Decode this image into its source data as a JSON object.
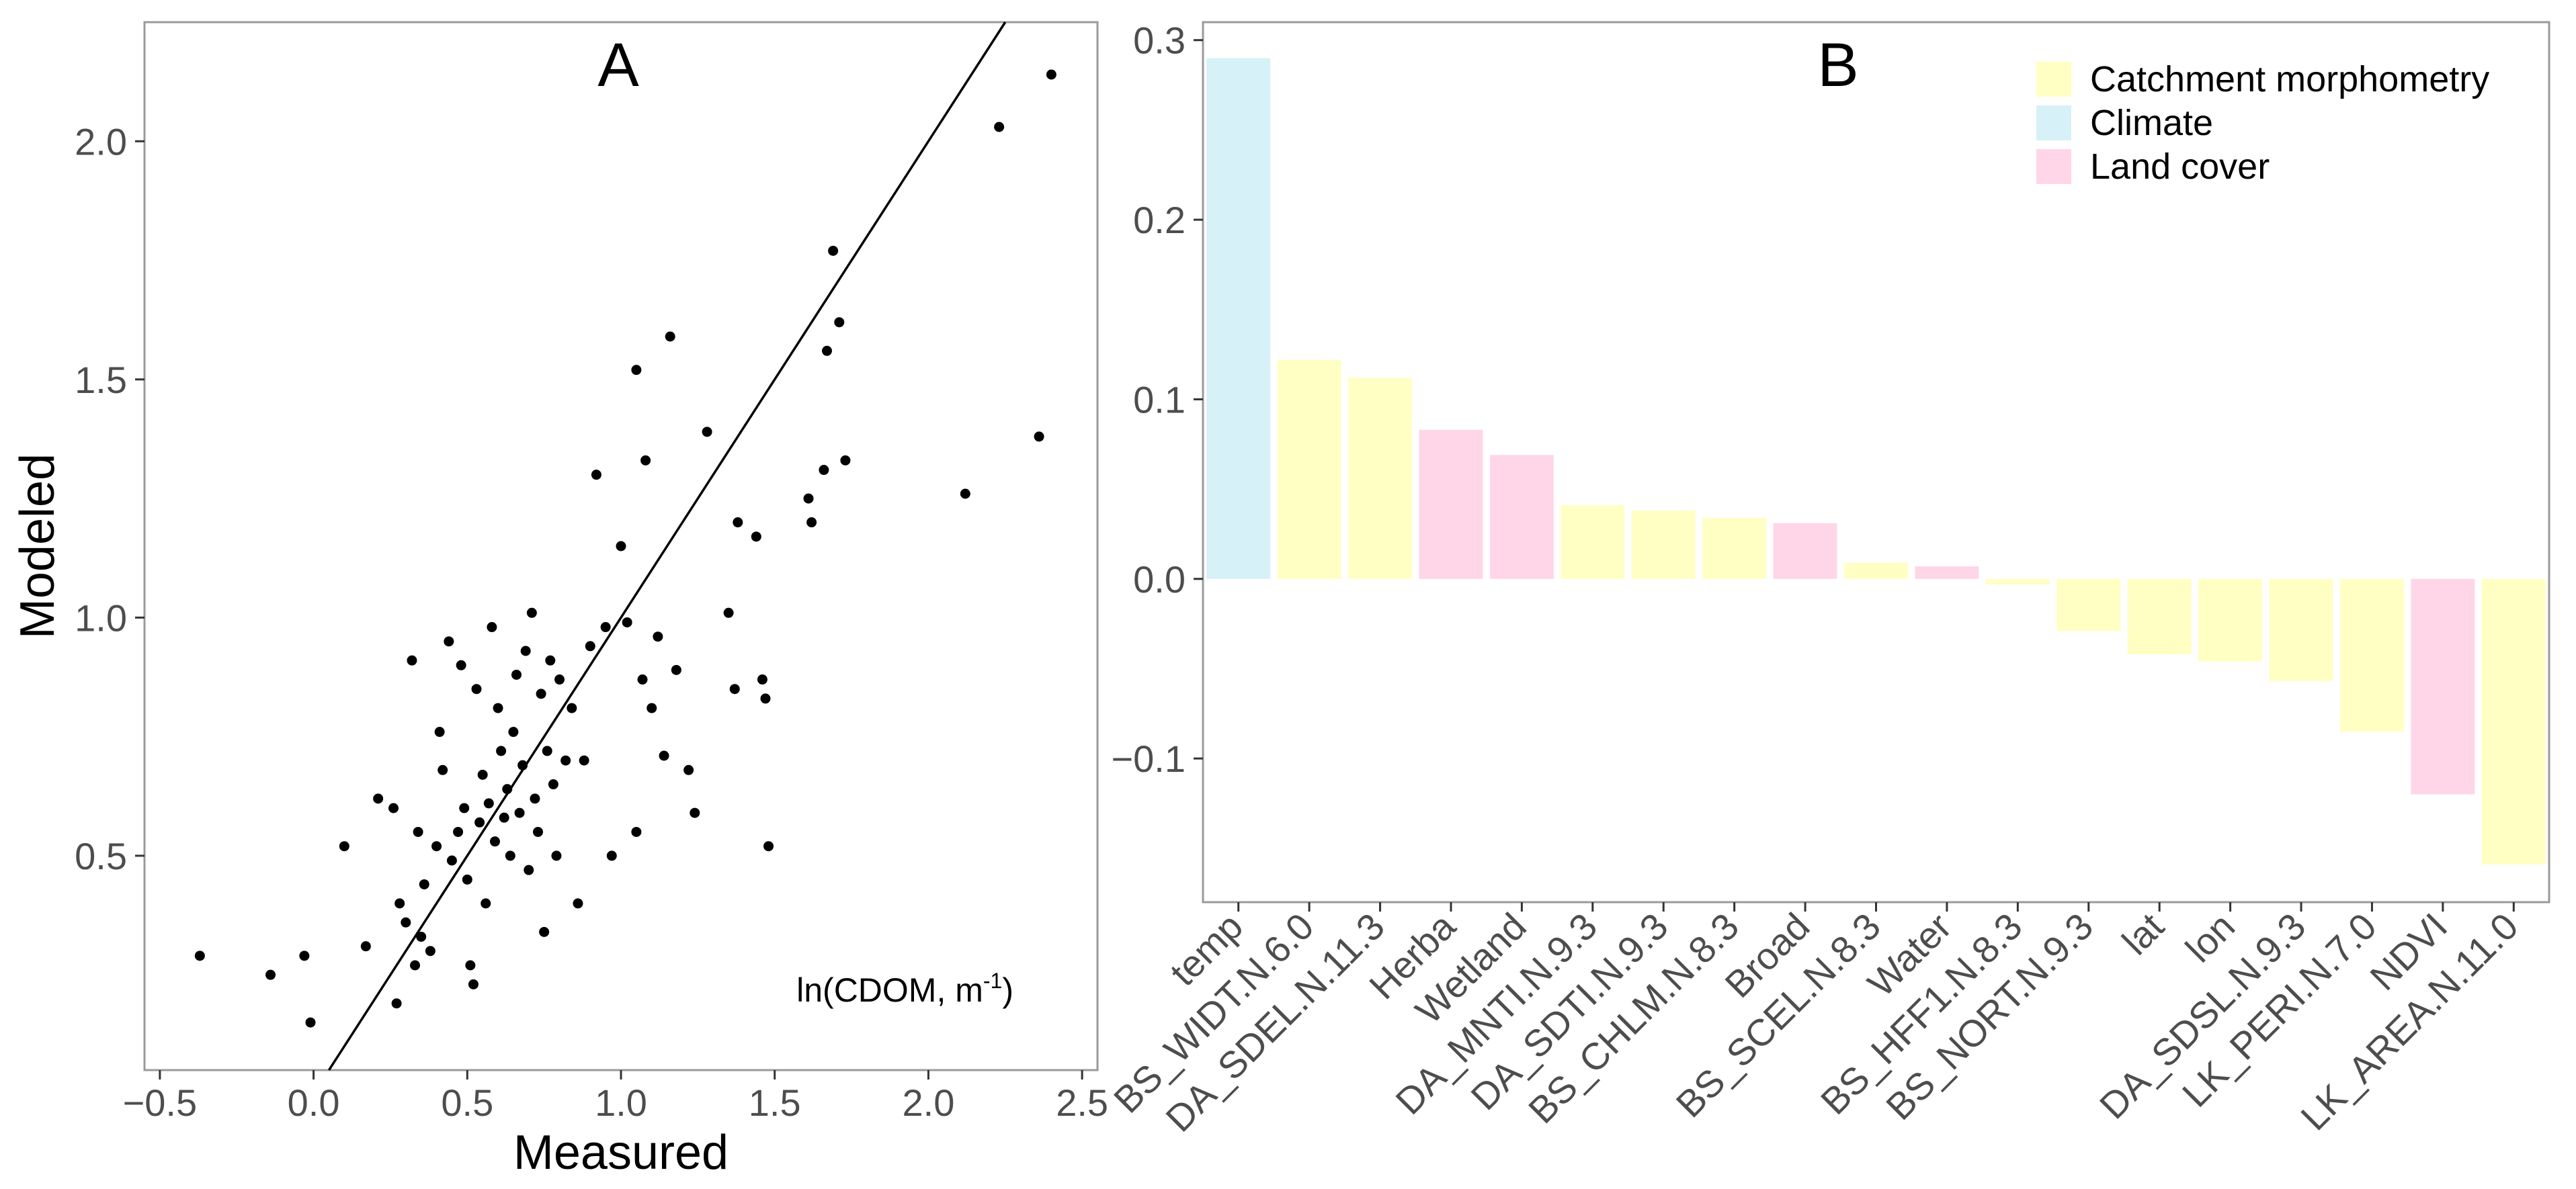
{
  "chart_data": [
    {
      "type": "scatter",
      "panel_label": "A",
      "xlabel": "Measured",
      "ylabel": "Modeled",
      "annotation": {
        "main": "ln(CDOM, m",
        "superscript": "-1",
        "close": ")"
      },
      "xlim": [
        -0.55,
        2.55
      ],
      "ylim": [
        0.05,
        2.25
      ],
      "x_ticks": [
        -0.5,
        0.0,
        0.5,
        1.0,
        1.5,
        2.0,
        2.5
      ],
      "x_tick_labels": [
        "−0.5",
        "0.0",
        "0.5",
        "1.0",
        "1.5",
        "2.0",
        "2.5"
      ],
      "y_ticks": [
        0.5,
        1.0,
        1.5,
        2.0
      ],
      "y_tick_labels": [
        "0.5",
        "1.0",
        "1.5",
        "2.0"
      ],
      "line": {
        "description": "1:1 line",
        "intercept": 0.0,
        "slope": 1.0
      },
      "points": [
        [
          -0.37,
          0.29
        ],
        [
          -0.14,
          0.25
        ],
        [
          -0.03,
          0.29
        ],
        [
          -0.01,
          0.15
        ],
        [
          0.1,
          0.52
        ],
        [
          0.17,
          0.31
        ],
        [
          0.21,
          0.62
        ],
        [
          0.26,
          0.6
        ],
        [
          0.27,
          0.19
        ],
        [
          0.28,
          0.4
        ],
        [
          0.3,
          0.36
        ],
        [
          0.32,
          0.91
        ],
        [
          0.33,
          0.27
        ],
        [
          0.34,
          0.55
        ],
        [
          0.35,
          0.33
        ],
        [
          0.36,
          0.44
        ],
        [
          0.38,
          0.3
        ],
        [
          0.4,
          0.52
        ],
        [
          0.41,
          0.76
        ],
        [
          0.42,
          0.68
        ],
        [
          0.44,
          0.95
        ],
        [
          0.45,
          0.49
        ],
        [
          0.47,
          0.55
        ],
        [
          0.48,
          0.9
        ],
        [
          0.49,
          0.6
        ],
        [
          0.5,
          0.45
        ],
        [
          0.51,
          0.27
        ],
        [
          0.52,
          0.23
        ],
        [
          0.53,
          0.85
        ],
        [
          0.54,
          0.57
        ],
        [
          0.55,
          0.67
        ],
        [
          0.56,
          0.4
        ],
        [
          0.57,
          0.61
        ],
        [
          0.58,
          0.98
        ],
        [
          0.59,
          0.53
        ],
        [
          0.6,
          0.81
        ],
        [
          0.61,
          0.72
        ],
        [
          0.62,
          0.58
        ],
        [
          0.63,
          0.64
        ],
        [
          0.64,
          0.5
        ],
        [
          0.65,
          0.76
        ],
        [
          0.66,
          0.88
        ],
        [
          0.67,
          0.59
        ],
        [
          0.68,
          0.69
        ],
        [
          0.69,
          0.93
        ],
        [
          0.7,
          0.47
        ],
        [
          0.71,
          1.01
        ],
        [
          0.72,
          0.62
        ],
        [
          0.73,
          0.55
        ],
        [
          0.74,
          0.84
        ],
        [
          0.75,
          0.34
        ],
        [
          0.76,
          0.72
        ],
        [
          0.77,
          0.91
        ],
        [
          0.78,
          0.65
        ],
        [
          0.79,
          0.5
        ],
        [
          0.8,
          0.87
        ],
        [
          0.82,
          0.7
        ],
        [
          0.84,
          0.81
        ],
        [
          0.86,
          0.4
        ],
        [
          0.88,
          0.7
        ],
        [
          0.9,
          0.94
        ],
        [
          0.92,
          1.3
        ],
        [
          0.95,
          0.98
        ],
        [
          0.97,
          0.5
        ],
        [
          1.0,
          1.15
        ],
        [
          1.02,
          0.99
        ],
        [
          1.05,
          0.55
        ],
        [
          1.05,
          1.52
        ],
        [
          1.07,
          0.87
        ],
        [
          1.08,
          1.33
        ],
        [
          1.1,
          0.81
        ],
        [
          1.12,
          0.96
        ],
        [
          1.14,
          0.71
        ],
        [
          1.16,
          1.59
        ],
        [
          1.18,
          0.89
        ],
        [
          1.22,
          0.68
        ],
        [
          1.24,
          0.59
        ],
        [
          1.28,
          1.39
        ],
        [
          1.35,
          1.01
        ],
        [
          1.37,
          0.85
        ],
        [
          1.38,
          1.2
        ],
        [
          1.44,
          1.17
        ],
        [
          1.46,
          0.87
        ],
        [
          1.47,
          0.83
        ],
        [
          1.48,
          0.52
        ],
        [
          1.61,
          1.25
        ],
        [
          1.62,
          1.2
        ],
        [
          1.66,
          1.31
        ],
        [
          1.67,
          1.56
        ],
        [
          1.69,
          1.77
        ],
        [
          1.71,
          1.62
        ],
        [
          1.73,
          1.33
        ],
        [
          2.12,
          1.26
        ],
        [
          2.23,
          2.03
        ],
        [
          2.36,
          1.38
        ],
        [
          2.4,
          2.14
        ]
      ]
    },
    {
      "type": "bar",
      "panel_label": "B",
      "ylim": [
        -0.18,
        0.31
      ],
      "y_ticks": [
        -0.1,
        0.0,
        0.1,
        0.2,
        0.3
      ],
      "y_tick_labels": [
        "−0.1",
        "0.0",
        "0.1",
        "0.2",
        "0.3"
      ],
      "legend": {
        "position": "top-right"
      },
      "groups": [
        {
          "name": "Catchment morphometry",
          "color": "#ffffc4"
        },
        {
          "name": "Climate",
          "color": "#d6f1f7"
        },
        {
          "name": "Land cover",
          "color": "#ffd6e7"
        }
      ],
      "categories": [
        "temp",
        "BS_WIDT.N.6.0",
        "DA_SDEL.N.11.3",
        "Herba",
        "Wetland",
        "DA_MNTI.N.9.3",
        "DA_SDTI.N.9.3",
        "BS_CHLM.N.8.3",
        "Broad",
        "BS_SCEL.N.8.3",
        "Water",
        "BS_HFF1.N.8.3",
        "BS_NORT.N.9.3",
        "lat",
        "lon",
        "DA_SDSL.N.9.3",
        "LK_PERI.N.7.0",
        "NDVI",
        "LK_AREA.N.11.0"
      ],
      "values": [
        0.29,
        0.122,
        0.112,
        0.083,
        0.069,
        0.041,
        0.038,
        0.034,
        0.031,
        0.009,
        0.007,
        -0.003,
        -0.029,
        -0.042,
        -0.046,
        -0.057,
        -0.085,
        -0.12,
        -0.159
      ],
      "bar_groups": [
        "Climate",
        "Catchment morphometry",
        "Catchment morphometry",
        "Land cover",
        "Land cover",
        "Catchment morphometry",
        "Catchment morphometry",
        "Catchment morphometry",
        "Land cover",
        "Catchment morphometry",
        "Land cover",
        "Catchment morphometry",
        "Catchment morphometry",
        "Catchment morphometry",
        "Catchment morphometry",
        "Catchment morphometry",
        "Catchment morphometry",
        "Land cover",
        "Catchment morphometry"
      ]
    }
  ]
}
